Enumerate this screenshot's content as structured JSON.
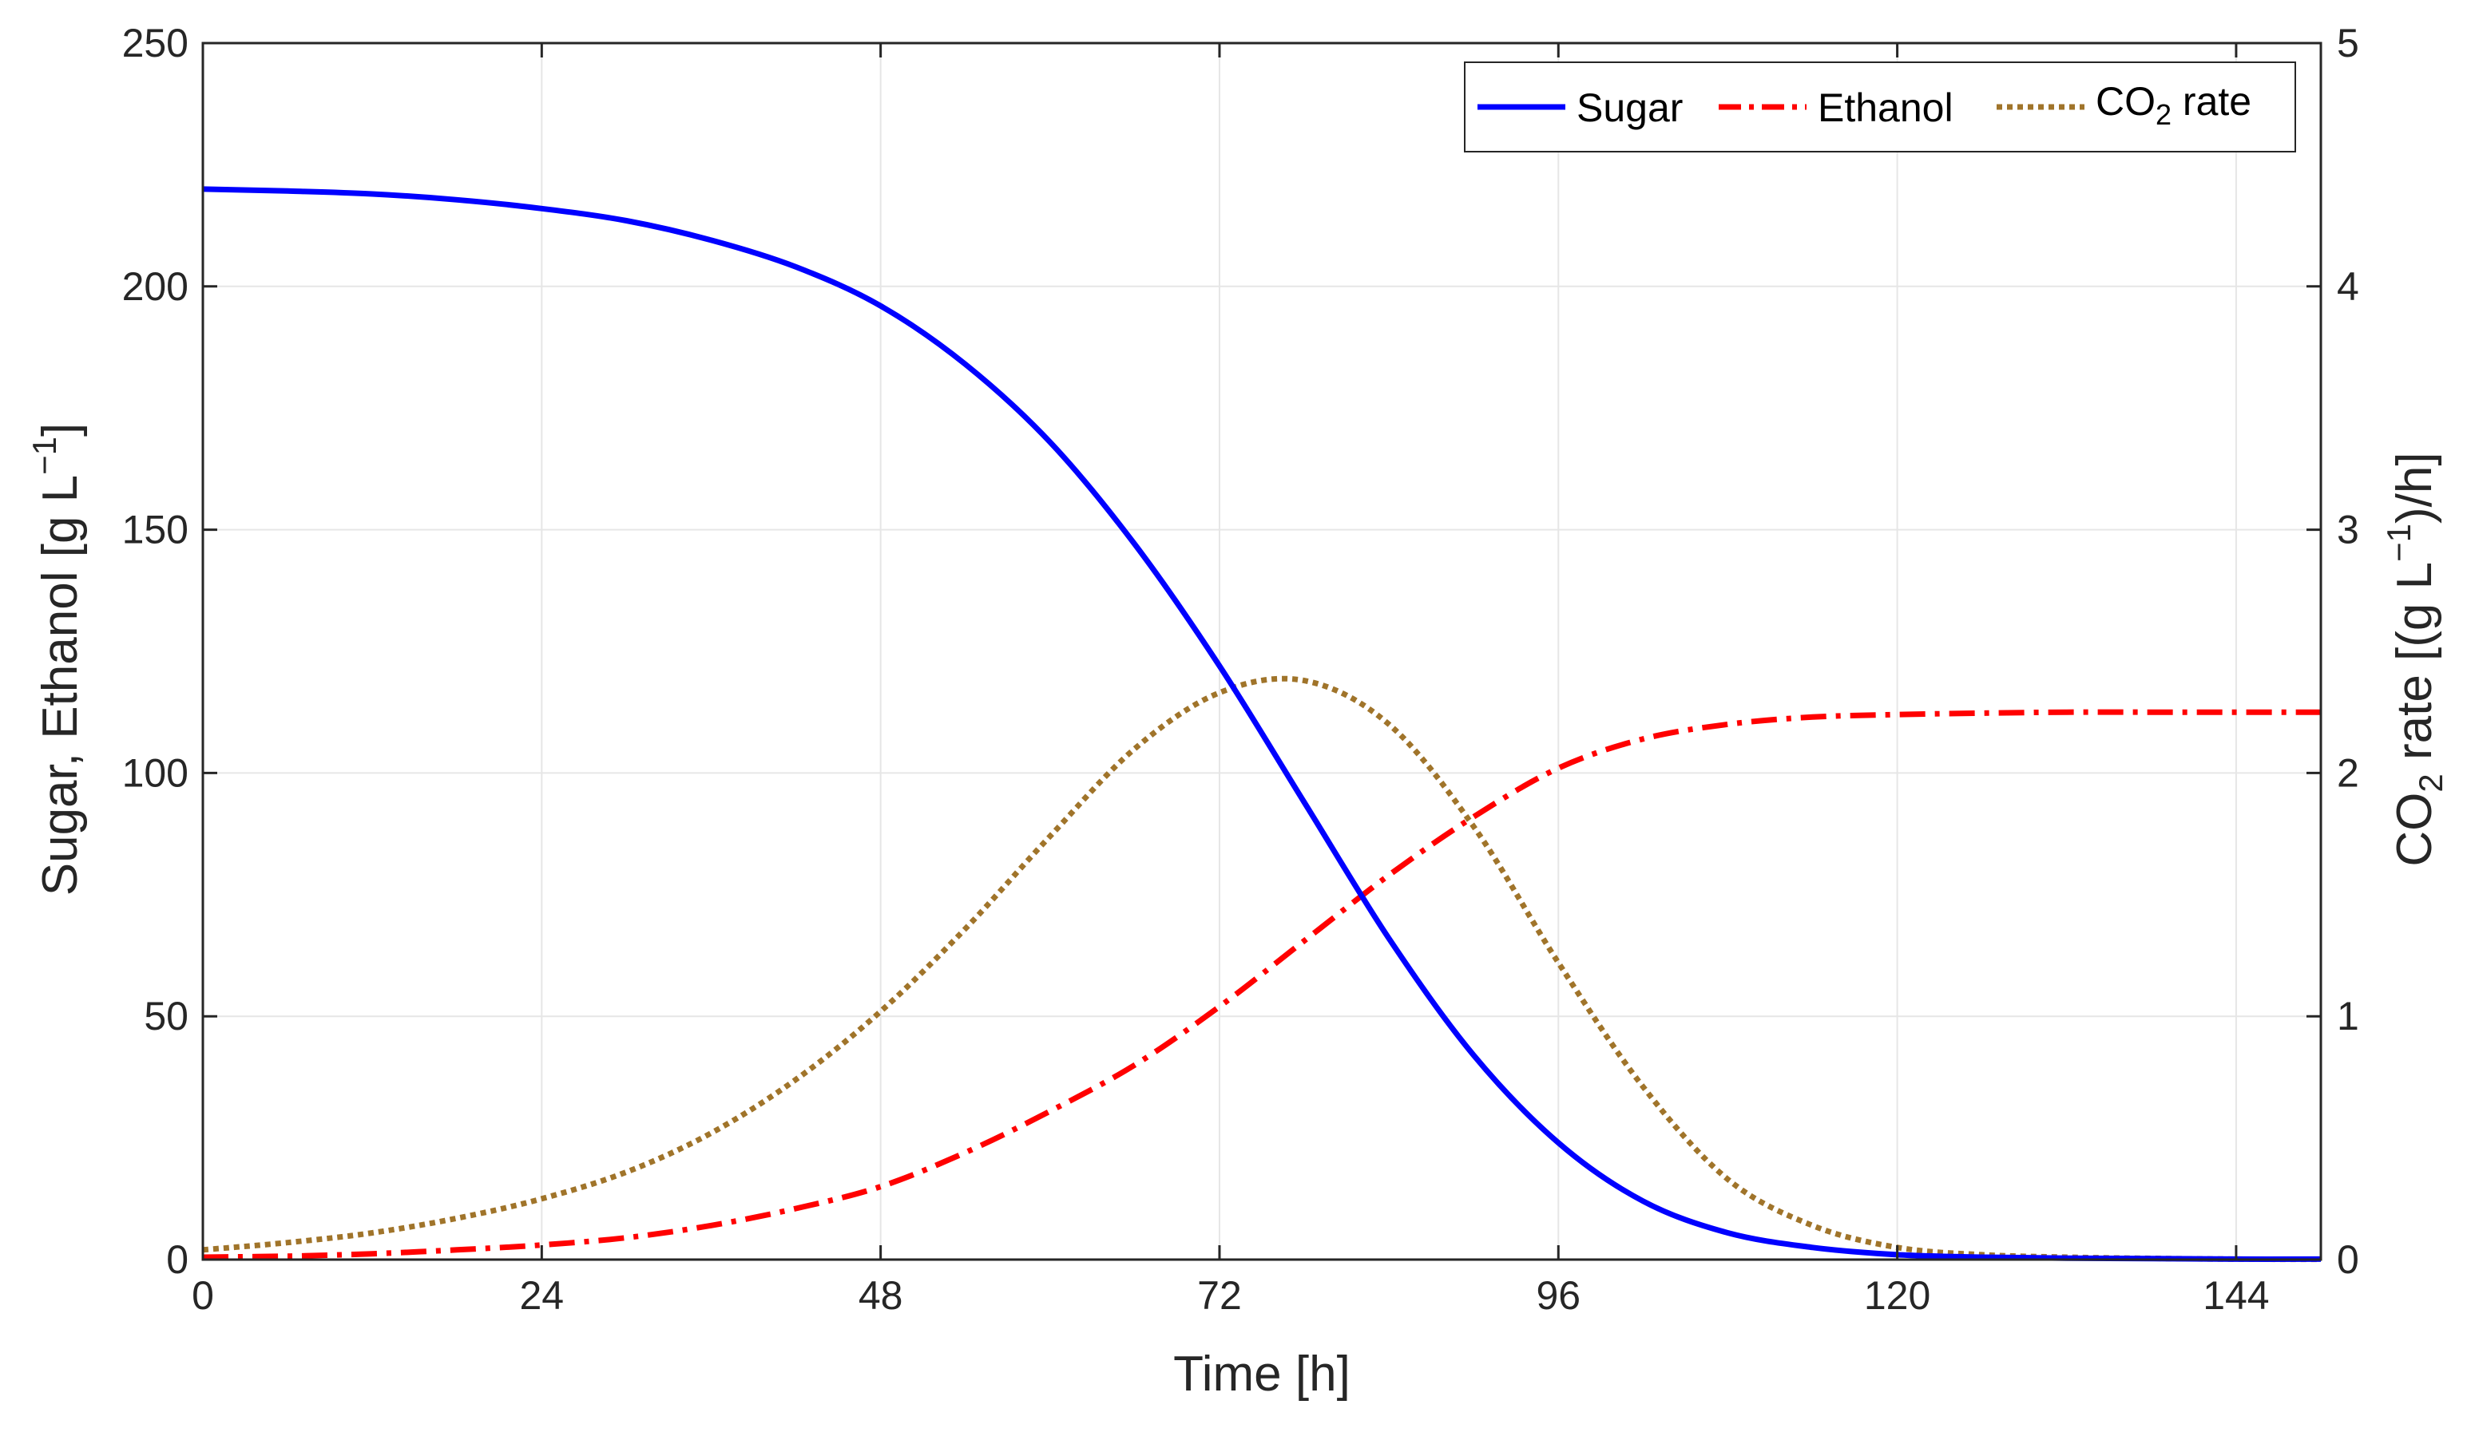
{
  "chart_data": {
    "type": "line",
    "title": "",
    "xlabel": "Time [h]",
    "ylabel_left": {
      "main": "Sugar, Ethanol [g L",
      "sup": "−1",
      "close": "]"
    },
    "ylabel_right": {
      "pre": "CO",
      "sub": "2",
      "mid": " rate [(g L",
      "sup": "−1",
      "post": ")/h]"
    },
    "xlim": [
      0,
      150
    ],
    "ylim_left": [
      0,
      250
    ],
    "ylim_right": [
      0,
      5
    ],
    "xticks": [
      0,
      24,
      48,
      72,
      96,
      120,
      144
    ],
    "yticks_left": [
      0,
      50,
      100,
      150,
      200,
      250
    ],
    "yticks_right": [
      0,
      1,
      2,
      3,
      4,
      5
    ],
    "grid": true,
    "legend_position": "top-right",
    "legend": {
      "sugar": "Sugar",
      "ethanol": "Ethanol",
      "co2": {
        "pre": "CO",
        "sub": "2",
        "post": " rate"
      }
    },
    "colors": {
      "sugar": "#0000ff",
      "ethanol": "#ff0000",
      "co2": "#a0742a",
      "grid": "#e6e6e6",
      "axis": "#262626"
    },
    "series": [
      {
        "name": "Sugar",
        "axis": "left",
        "style": "solid",
        "x": [
          0,
          6,
          12,
          18,
          24,
          30,
          36,
          42,
          48,
          54,
          60,
          66,
          72,
          78,
          84,
          90,
          96,
          102,
          108,
          114,
          120,
          126,
          132,
          138,
          144,
          150
        ],
        "y": [
          220,
          219.6,
          219,
          217.8,
          216,
          213.5,
          209.5,
          204,
          196,
          184,
          168,
          147,
          122,
          94,
          66,
          42,
          24,
          12,
          5.5,
          2.5,
          1,
          0.5,
          0.3,
          0.2,
          0.1,
          0.1
        ]
      },
      {
        "name": "Ethanol",
        "axis": "left",
        "style": "dashdot",
        "x": [
          0,
          6,
          12,
          18,
          24,
          30,
          36,
          42,
          48,
          54,
          60,
          66,
          72,
          78,
          84,
          90,
          96,
          102,
          108,
          114,
          120,
          126,
          132,
          138,
          144,
          150
        ],
        "y": [
          0.5,
          0.7,
          1.2,
          2,
          3,
          4.5,
          7,
          10.5,
          15,
          22,
          30.5,
          40,
          52,
          65.5,
          79,
          91,
          101,
          107,
          110,
          111.5,
          112,
          112.3,
          112.5,
          112.5,
          112.5,
          112.5
        ]
      },
      {
        "name": "CO2 rate",
        "axis": "right",
        "style": "dotted",
        "x": [
          0,
          6,
          12,
          18,
          24,
          30,
          36,
          42,
          48,
          54,
          60,
          66,
          72,
          78,
          84,
          90,
          96,
          102,
          108,
          114,
          120,
          126,
          132,
          138,
          144,
          150
        ],
        "y": [
          0.04,
          0.07,
          0.11,
          0.17,
          0.25,
          0.36,
          0.52,
          0.74,
          1.02,
          1.36,
          1.74,
          2.1,
          2.33,
          2.38,
          2.2,
          1.78,
          1.22,
          0.71,
          0.33,
          0.14,
          0.05,
          0.02,
          0.01,
          0.005,
          0.002,
          0.001
        ]
      }
    ]
  }
}
